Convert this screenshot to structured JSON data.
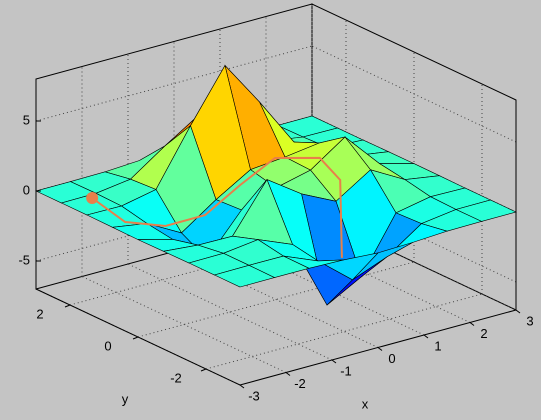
{
  "chart_data": {
    "type": "surface",
    "xlabel": "x",
    "ylabel": "y",
    "x": [
      -3,
      -2.25,
      -1.5,
      -0.75,
      0,
      0.75,
      1.5,
      2.25,
      3
    ],
    "y": [
      -3,
      -2.25,
      -1.5,
      -0.75,
      0,
      0.75,
      1.5,
      2.25,
      3
    ],
    "z": [
      [
        0.0,
        0.0,
        0.0,
        -0.07,
        -0.24,
        -0.17,
        -0.03,
        0.0,
        0.0
      ],
      [
        0.0,
        0.02,
        0.01,
        -1.0,
        -3.02,
        -2.05,
        -0.35,
        -0.01,
        0.0
      ],
      [
        0.0,
        0.02,
        0.33,
        -0.68,
        -5.68,
        -4.32,
        -0.44,
        0.05,
        0.0
      ],
      [
        -0.02,
        -0.25,
        -0.28,
        3.09,
        1.4,
        0.2,
        1.78,
        0.41,
        0.02
      ],
      [
        -0.04,
        -0.69,
        -2.77,
        0.06,
        0.98,
        1.57,
        3.27,
        0.7,
        0.03
      ],
      [
        -0.02,
        -0.42,
        -1.76,
        -0.05,
        1.42,
        1.65,
        1.99,
        0.4,
        0.02
      ],
      [
        0.0,
        -0.03,
        0.48,
        4.37,
        8.0,
        4.72,
        1.19,
        0.12,
        0.0
      ],
      [
        0.0,
        0.02,
        0.36,
        2.07,
        3.65,
        2.09,
        0.41,
        0.03,
        0.0
      ],
      [
        0.0,
        0.0,
        0.03,
        0.17,
        0.3,
        0.17,
        0.03,
        0.0,
        0.0
      ]
    ],
    "xlim": [
      -3,
      3
    ],
    "ylim": [
      -3,
      3
    ],
    "zlim": [
      -7,
      8
    ],
    "xticks": [
      -3,
      -2,
      -1,
      0,
      1,
      2,
      3
    ],
    "yticks": [
      -2,
      0,
      2
    ],
    "zticks": [
      -5,
      0,
      5
    ],
    "grid": true,
    "colormap": "jet",
    "path": {
      "color": "#e8804a",
      "x": [
        -2.43,
        -2.68,
        -2.24,
        -1.5,
        -0.83,
        0.03,
        0.65,
        0.9,
        1.1
      ],
      "y": [
        2.12,
        0.81,
        0.22,
        0.06,
        -0.07,
        0.07,
        -0.41,
        -0.67,
        -0.45
      ],
      "z": [
        0,
        0,
        0,
        0.3,
        2,
        3,
        3,
        1.5,
        -4.5
      ]
    }
  }
}
